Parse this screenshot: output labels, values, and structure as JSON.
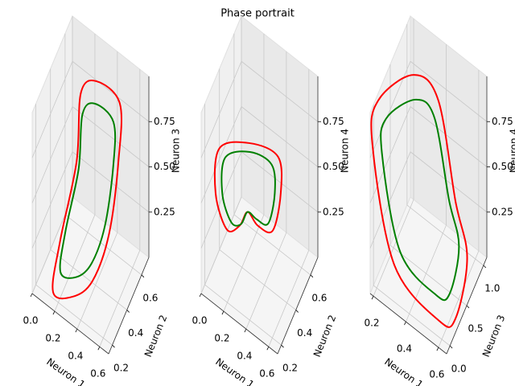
{
  "title": "Phase portrait",
  "chart_data": [
    {
      "type": "line3d",
      "xlabel": "Neuron 1",
      "ylabel": "Neuron 2",
      "zlabel": "Neuron 3",
      "xlim": [
        0,
        0.68
      ],
      "ylim": [
        0.15,
        0.7
      ],
      "zlim": [
        0,
        1
      ],
      "xticks": [
        {
          "value": 0,
          "label": "0.0"
        },
        0.2,
        0.4,
        0.6
      ],
      "yticks": [
        0.2,
        0.4,
        0.6
      ],
      "zticks": [
        0.25,
        {
          "value": 0.5,
          "label": "0.50"
        },
        0.75
      ],
      "grid": true,
      "series": [
        {
          "color": "#ff0000",
          "x": [
            0.14,
            0.1,
            0.07,
            0.14,
            0.27,
            0.48,
            0.54,
            0.58,
            0.51,
            0.34
          ],
          "y": [
            0.22,
            0.38,
            0.65,
            0.6,
            0.61,
            0.61,
            0.5,
            0.31,
            0.19,
            0.18
          ],
          "z": [
            0.01,
            0.12,
            0.28,
            0.74,
            0.86,
            0.84,
            0.66,
            0.46,
            0.28,
            0.12
          ]
        },
        {
          "color": "#008000",
          "x": [
            0.18,
            0.14,
            0.12,
            0.18,
            0.28,
            0.45,
            0.5,
            0.53,
            0.47,
            0.34
          ],
          "y": [
            0.26,
            0.39,
            0.6,
            0.56,
            0.57,
            0.57,
            0.49,
            0.33,
            0.24,
            0.23
          ],
          "z": [
            0.1,
            0.18,
            0.31,
            0.68,
            0.78,
            0.76,
            0.62,
            0.46,
            0.31,
            0.18
          ]
        }
      ]
    },
    {
      "type": "line3d",
      "xlabel": "Neuron 1",
      "ylabel": "Neuron 2",
      "zlabel": "Neuron 4",
      "xlim": [
        0,
        0.68
      ],
      "ylim": [
        0.15,
        0.7
      ],
      "zlim": [
        0,
        1
      ],
      "xticks": [
        {
          "value": 0,
          "label": "0.0"
        },
        0.2,
        0.4,
        0.6
      ],
      "yticks": [
        0.2,
        0.4,
        0.6
      ],
      "zticks": [
        0.25,
        {
          "value": 0.5,
          "label": "0.50"
        },
        0.75
      ],
      "grid": true,
      "series": [
        {
          "color": "#ff0000",
          "x": [
            0.07,
            0.2,
            0.41,
            0.48,
            0.48,
            0.34,
            0.27,
            0.27,
            0.17,
            0.07
          ],
          "y": [
            0.29,
            0.5,
            0.57,
            0.5,
            0.39,
            0.4,
            0.37,
            0.26,
            0.24,
            0.24
          ],
          "z": [
            0.7,
            0.59,
            0.55,
            0.45,
            0.35,
            0.3,
            0.37,
            0.4,
            0.35,
            0.5
          ]
        },
        {
          "color": "#008000",
          "x": [
            0.11,
            0.22,
            0.38,
            0.44,
            0.44,
            0.33,
            0.27,
            0.27,
            0.19,
            0.11
          ],
          "y": [
            0.31,
            0.48,
            0.53,
            0.48,
            0.39,
            0.4,
            0.37,
            0.28,
            0.27,
            0.27
          ],
          "z": [
            0.65,
            0.57,
            0.53,
            0.45,
            0.37,
            0.33,
            0.37,
            0.39,
            0.37,
            0.49
          ]
        }
      ]
    },
    {
      "type": "line3d",
      "xlabel": "Neuron 1",
      "ylabel": "Neuron 3",
      "zlabel": "Neuron 4",
      "xlim": [
        0.18,
        0.65
      ],
      "ylim": [
        -0.1,
        1.1
      ],
      "zlim": [
        0,
        1
      ],
      "xticks": [
        0.2,
        0.4,
        0.6
      ],
      "yticks": [
        {
          "value": 0,
          "label": "0.0"
        },
        0.5,
        {
          "value": 1,
          "label": "1.0"
        }
      ],
      "zticks": [
        0.25,
        {
          "value": 0.5,
          "label": "0.50"
        },
        0.75
      ],
      "grid": true,
      "series": [
        {
          "color": "#ff0000",
          "x": [
            0.27,
            0.39,
            0.56,
            0.63,
            0.63,
            0.56,
            0.32,
            0.19,
            0.18
          ],
          "y": [
            0.76,
            0.91,
            0.6,
            0.61,
            0.26,
            0.12,
            -0.06,
            -0.08,
            0.14
          ],
          "z": [
            0.89,
            0.77,
            0.47,
            0.2,
            0.02,
            0.02,
            0.24,
            0.82,
            0.96
          ]
        },
        {
          "color": "#008000",
          "x": [
            0.3,
            0.39,
            0.53,
            0.59,
            0.59,
            0.53,
            0.34,
            0.23,
            0.22
          ],
          "y": [
            0.68,
            0.8,
            0.55,
            0.56,
            0.28,
            0.17,
            0.02,
            0.01,
            0.18
          ],
          "z": [
            0.81,
            0.72,
            0.48,
            0.26,
            0.12,
            0.12,
            0.29,
            0.76,
            0.87
          ]
        }
      ]
    }
  ]
}
